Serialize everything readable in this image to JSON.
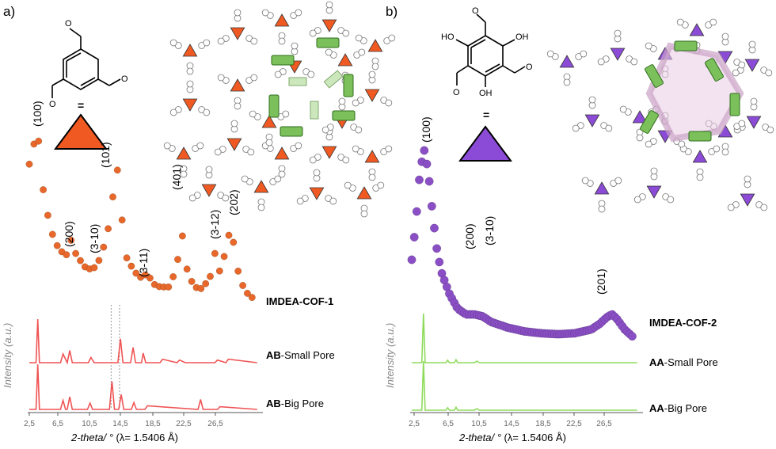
{
  "panels": [
    {
      "letter": "a)",
      "colors": {
        "experimental": "#E8672A",
        "simulated": "#F05454",
        "triangle": "#F05A22"
      },
      "chart_data": {
        "type": "line",
        "xlabel_prefix": "2-theta/ ° ",
        "xlabel_suffix": "(λ= 1.5406 Å)",
        "ylabel": "Intensity (a.u.)",
        "xlim": [
          2.5,
          30
        ],
        "x_ticks": [
          "2,5",
          "6,5",
          "10,5",
          "14,5",
          "18,5",
          "22,5",
          "26,5"
        ],
        "series": [
          {
            "name": "IMDEA-COF-1",
            "x": [
              2.5,
              3.0,
              3.5,
              4.0,
              5.0,
              6.0,
              7.0,
              7.5,
              8.0,
              9.0,
              10.0,
              11.0,
              12.0,
              12.5,
              13.0,
              13.5,
              14.0,
              15.0,
              16.0,
              16.5,
              17.0,
              18.0,
              19.0,
              20.0,
              20.5,
              21.0,
              22.0,
              23.0,
              24.0,
              24.5,
              25.0,
              25.5,
              26.0,
              26.5,
              27.0,
              28.0,
              29.0
            ],
            "y": [
              82,
              92,
              100,
              72,
              47,
              36,
              33,
              42,
              34,
              27,
              25,
              32,
              50,
              68,
              80,
              52,
              32,
              24,
              20,
              25,
              18,
              16,
              16,
              26,
              50,
              28,
              16,
              15,
              22,
              34,
              24,
              30,
              42,
              48,
              28,
              14,
              10
            ]
          },
          {
            "name": "AB-Small Pore",
            "x": [
              2.5,
              3.3,
              3.5,
              3.7,
              5.5,
              6.2,
              6.5,
              7.0,
              7.3,
              7.6,
              9.5,
              9.8,
              10.2,
              12.5,
              13.0,
              13.3,
              13.6,
              14.5,
              14.8,
              15.1,
              15.8,
              16.0,
              16.3,
              18.0,
              18.3,
              20.0,
              20.3,
              21.0,
              24.5,
              24.8,
              25.8,
              26.1,
              29.5
            ],
            "y": [
              0,
              0,
              100,
              0,
              0,
              0,
              20,
              0,
              28,
              0,
              0,
              12,
              0,
              0,
              0,
              55,
              0,
              0,
              35,
              0,
              0,
              22,
              0,
              0,
              8,
              0,
              6,
              0,
              0,
              6,
              0,
              8,
              0
            ]
          },
          {
            "name": "AB-Big Pore",
            "x": [
              2.5,
              3.3,
              3.5,
              3.7,
              5.5,
              6.2,
              6.5,
              6.8,
              7.0,
              7.3,
              7.6,
              9.4,
              9.7,
              10.0,
              11.8,
              12.0,
              12.3,
              12.6,
              13.1,
              13.4,
              13.7,
              14.6,
              14.9,
              15.2,
              16.2,
              16.5,
              22.5,
              22.8,
              23.1,
              24.8,
              25.1,
              29.5
            ],
            "y": [
              0,
              0,
              100,
              0,
              0,
              0,
              20,
              0,
              0,
              28,
              0,
              0,
              14,
              0,
              0,
              0,
              62,
              0,
              0,
              33,
              0,
              0,
              15,
              0,
              0,
              8,
              0,
              22,
              0,
              0,
              6,
              0
            ]
          }
        ],
        "peak_labels": [
          "(100)",
          "(200)",
          "(3-10)",
          "(101)",
          "(3-11)",
          "(401)",
          "(3-12)",
          "(202)"
        ],
        "reference_lines_x": [
          12.2,
          13.2
        ]
      },
      "sample_label": "IMDEA-COF-1",
      "traces": [
        {
          "bold": "AB",
          "rest": "-Small Pore"
        },
        {
          "bold": "AB",
          "rest": "-Big Pore"
        }
      ],
      "molecule_atoms": [
        "O",
        "O",
        "O"
      ]
    },
    {
      "letter": "b)",
      "colors": {
        "experimental": "#8A4FC4",
        "simulated": "#8EDB5C",
        "triangle": "#8B4BD6"
      },
      "chart_data": {
        "type": "line",
        "xlabel_prefix": "2-theta/ ° ",
        "xlabel_suffix": "(λ= 1.5406 Å)",
        "ylabel": "Intensity (a.u.)",
        "xlim": [
          2.5,
          30
        ],
        "x_ticks": [
          "2,5",
          "6,5",
          "10,5",
          "14,5",
          "18,5",
          "22,5",
          "26,5"
        ],
        "series": [
          {
            "name": "IMDEA-COF-2",
            "x": [
              2.5,
              3.0,
              3.5,
              4.0,
              4.5,
              5.0,
              5.5,
              6.0,
              7.0,
              8.0,
              9.0,
              10.0,
              11.0,
              12.0,
              14.0,
              16.0,
              18.0,
              20.0,
              22.0,
              24.0,
              25.0,
              26.0,
              26.5,
              27.0,
              28.0,
              29.0
            ],
            "y": [
              42,
              62,
              90,
              100,
              88,
              66,
              48,
              36,
              24,
              16,
              13,
              13,
              12,
              9,
              6,
              4,
              3,
              2.5,
              3,
              5,
              8,
              12,
              13,
              11,
              5,
              1
            ]
          },
          {
            "name": "AA-Small Pore",
            "x": [
              2.5,
              3.7,
              3.9,
              4.1,
              6.0,
              6.6,
              6.8,
              7.0,
              7.6,
              7.8,
              8.0,
              10.0,
              10.3,
              10.6,
              29.5
            ],
            "y": [
              0,
              0,
              100,
              0,
              0,
              0,
              5,
              0,
              0,
              6,
              0,
              0,
              3,
              0,
              0
            ]
          },
          {
            "name": "AA-Big Pore",
            "x": [
              2.5,
              3.7,
              3.9,
              4.1,
              6.0,
              6.6,
              6.8,
              7.0,
              7.6,
              7.8,
              8.0,
              10.0,
              10.3,
              10.6,
              29.5
            ],
            "y": [
              0,
              0,
              100,
              0,
              0,
              0,
              5,
              0,
              0,
              6,
              0,
              0,
              3,
              0,
              0
            ]
          }
        ],
        "peak_labels": [
          "(100)",
          "(200)",
          "(3-10)",
          "(201)"
        ]
      },
      "sample_label": "IMDEA-COF-2",
      "traces": [
        {
          "bold": "AA",
          "rest": "-Small Pore"
        },
        {
          "bold": "AA",
          "rest": "-Big Pore"
        }
      ],
      "molecule_atoms": [
        "O",
        "HO",
        "OH",
        "OH",
        "O",
        "O"
      ]
    }
  ],
  "equals_sign": "="
}
